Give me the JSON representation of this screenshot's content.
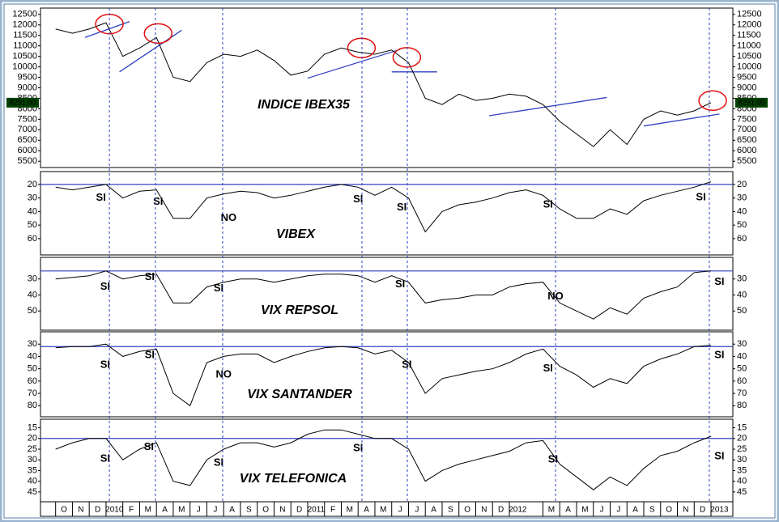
{
  "chart_data": [
    {
      "type": "line",
      "title": "INDICE IBEX35",
      "color": "#000000",
      "last_label": "8291.00",
      "x": [
        0,
        1,
        2,
        3,
        4,
        5,
        6,
        7,
        8,
        9,
        10,
        11,
        12,
        13,
        14,
        15,
        16,
        17,
        18,
        19,
        20,
        21,
        22,
        23,
        24,
        25,
        26,
        27,
        28,
        29,
        30,
        31,
        32,
        33,
        34,
        35,
        36,
        37,
        38,
        39
      ],
      "values": [
        11800,
        11600,
        11800,
        12100,
        10500,
        10900,
        11400,
        9500,
        9300,
        10200,
        10600,
        10500,
        10800,
        10300,
        9600,
        9800,
        10600,
        10900,
        10700,
        10600,
        10800,
        10200,
        8500,
        8200,
        8700,
        8400,
        8500,
        8700,
        8600,
        8200,
        7400,
        6800,
        6200,
        7000,
        6300,
        7500,
        7900,
        7700,
        7900,
        8291
      ],
      "ylim": [
        5200,
        12800
      ],
      "yticks": [
        5500,
        6000,
        6500,
        7000,
        7500,
        8000,
        8500,
        9000,
        9500,
        10000,
        10500,
        11000,
        11500,
        12000,
        12500
      ],
      "vlines": [
        3.2,
        5.94,
        9.94,
        18.23,
        20.93,
        29.75,
        38.9
      ],
      "trendlines": [
        {
          "x1": 1.75,
          "y1": 11400,
          "x2": 4.4,
          "y2": 12160
        },
        {
          "x1": 3.8,
          "y1": 9760,
          "x2": 7.5,
          "y2": 11740
        },
        {
          "x1": 15,
          "y1": 9460,
          "x2": 20.5,
          "y2": 10830
        },
        {
          "x1": 20,
          "y1": 9760,
          "x2": 22.7,
          "y2": 9760
        },
        {
          "x1": 25.8,
          "y1": 7670,
          "x2": 32.8,
          "y2": 8540
        },
        {
          "x1": 35,
          "y1": 7180,
          "x2": 39.5,
          "y2": 7750
        }
      ],
      "circles": [
        {
          "x": 3.2,
          "y": 12040
        },
        {
          "x": 6.1,
          "y": 11590
        },
        {
          "x": 18.2,
          "y": 10900
        },
        {
          "x": 20.9,
          "y": 10450
        },
        {
          "x": 39.1,
          "y": 8390
        }
      ]
    },
    {
      "type": "line",
      "title": "VIBEX",
      "color": "#000000",
      "x": [
        0,
        1,
        2,
        3,
        4,
        5,
        6,
        7,
        8,
        9,
        10,
        11,
        12,
        13,
        14,
        15,
        16,
        17,
        18,
        19,
        20,
        21,
        22,
        23,
        24,
        25,
        26,
        27,
        28,
        29,
        30,
        31,
        32,
        33,
        34,
        35,
        36,
        37,
        38,
        39
      ],
      "values": [
        22,
        24,
        22,
        20,
        30,
        25,
        24,
        45,
        45,
        30,
        27,
        25,
        26,
        30,
        28,
        25,
        22,
        20,
        22,
        28,
        22,
        30,
        55,
        40,
        35,
        33,
        30,
        26,
        24,
        28,
        38,
        45,
        45,
        38,
        42,
        32,
        28,
        25,
        22,
        18
      ],
      "ylim": [
        72,
        10.5
      ],
      "yticks": [
        20,
        30,
        40,
        50,
        60
      ],
      "hline": 20,
      "annotations": [
        {
          "text": "SI",
          "x": 2.7,
          "y": 30,
          "color": "#1a2aa8"
        },
        {
          "text": "SI",
          "x": 6.1,
          "y": 33,
          "color": "#1a2aa8"
        },
        {
          "text": "NO",
          "x": 10.3,
          "y": 45,
          "color": "#e01010"
        },
        {
          "text": "SI",
          "x": 18,
          "y": 31,
          "color": "#1a2aa8"
        },
        {
          "text": "SI",
          "x": 20.6,
          "y": 37,
          "color": "#1a2aa8"
        },
        {
          "text": "SI",
          "x": 29.3,
          "y": 35,
          "color": "#1a2aa8"
        },
        {
          "text": "SI",
          "x": 38.4,
          "y": 29.5,
          "color": "#1a2aa8"
        }
      ]
    },
    {
      "type": "line",
      "title": "VIX REPSOL",
      "color": "#000000",
      "x": [
        0,
        1,
        2,
        3,
        4,
        5,
        6,
        7,
        8,
        9,
        10,
        11,
        12,
        13,
        14,
        15,
        16,
        17,
        18,
        19,
        20,
        21,
        22,
        23,
        24,
        25,
        26,
        27,
        28,
        29,
        30,
        31,
        32,
        33,
        34,
        35,
        36,
        37,
        38,
        39
      ],
      "values": [
        30,
        29,
        28,
        25,
        30,
        28,
        27,
        45,
        45,
        35,
        32,
        30,
        30,
        32,
        30,
        28,
        27,
        27,
        28,
        32,
        28,
        32,
        45,
        43,
        42,
        40,
        40,
        35,
        33,
        32,
        45,
        50,
        55,
        48,
        52,
        42,
        38,
        35,
        26,
        25
      ],
      "ylim": [
        62,
        16.5
      ],
      "yticks": [
        30,
        40,
        50
      ],
      "hline": 25,
      "annotations": [
        {
          "text": "SI",
          "x": 2.95,
          "y": 35,
          "color": "#1a2aa8"
        },
        {
          "text": "SI",
          "x": 5.6,
          "y": 29,
          "color": "#1a2aa8"
        },
        {
          "text": "SI",
          "x": 9.7,
          "y": 36,
          "color": "#1a2aa8"
        },
        {
          "text": "SI",
          "x": 20.5,
          "y": 33.5,
          "color": "#1a2aa8"
        },
        {
          "text": "NO",
          "x": 29.75,
          "y": 41,
          "color": "#e01010"
        },
        {
          "text": "SI",
          "x": 39.5,
          "y": 32,
          "color": "#1a2aa8"
        }
      ]
    },
    {
      "type": "line",
      "title": "VIX SANTANDER",
      "color": "#000000",
      "x": [
        0,
        1,
        2,
        3,
        4,
        5,
        6,
        7,
        8,
        9,
        10,
        11,
        12,
        13,
        14,
        15,
        16,
        17,
        18,
        19,
        20,
        21,
        22,
        23,
        24,
        25,
        26,
        27,
        28,
        29,
        30,
        31,
        32,
        33,
        34,
        35,
        36,
        37,
        38,
        39
      ],
      "values": [
        33,
        32,
        32,
        30,
        40,
        36,
        34,
        70,
        80,
        45,
        40,
        38,
        38,
        45,
        40,
        36,
        33,
        32,
        33,
        38,
        35,
        45,
        70,
        58,
        55,
        52,
        50,
        45,
        38,
        34,
        48,
        55,
        65,
        58,
        62,
        48,
        42,
        38,
        32,
        31
      ],
      "ylim": [
        89,
        20
      ],
      "yticks": [
        30,
        40,
        50,
        60,
        70,
        80
      ],
      "hline": 32,
      "annotations": [
        {
          "text": "SI",
          "x": 2.95,
          "y": 47,
          "color": "#1a2aa8"
        },
        {
          "text": "SI",
          "x": 5.6,
          "y": 39,
          "color": "#1a2aa8"
        },
        {
          "text": "NO",
          "x": 10,
          "y": 55,
          "color": "#e01010"
        },
        {
          "text": "SI",
          "x": 20.9,
          "y": 47,
          "color": "#1a2aa8"
        },
        {
          "text": "SI",
          "x": 29.3,
          "y": 50,
          "color": "#1a2aa8"
        },
        {
          "text": "SI",
          "x": 39.5,
          "y": 39,
          "color": "#1a2aa8"
        }
      ]
    },
    {
      "type": "line",
      "title": "VIX TELEFONICA",
      "color": "#000000",
      "x": [
        0,
        1,
        2,
        3,
        4,
        5,
        6,
        7,
        8,
        9,
        10,
        11,
        12,
        13,
        14,
        15,
        16,
        17,
        18,
        19,
        20,
        21,
        22,
        23,
        24,
        25,
        26,
        27,
        28,
        29,
        30,
        31,
        32,
        33,
        34,
        35,
        36,
        37,
        38,
        39
      ],
      "values": [
        25,
        22,
        20,
        20,
        30,
        25,
        22,
        40,
        42,
        30,
        25,
        22,
        22,
        24,
        22,
        18,
        16,
        16,
        18,
        20,
        20,
        25,
        40,
        35,
        32,
        30,
        28,
        26,
        22,
        21,
        32,
        38,
        44,
        38,
        42,
        34,
        28,
        26,
        22,
        19
      ],
      "ylim": [
        49.6,
        11
      ],
      "yticks": [
        15,
        20,
        25,
        30,
        35,
        40,
        45
      ],
      "hline": 20,
      "annotations": [
        {
          "text": "SI",
          "x": 2.95,
          "y": 29.6,
          "color": "#1a2aa8"
        },
        {
          "text": "SI",
          "x": 5.55,
          "y": 24,
          "color": "#1a2aa8"
        },
        {
          "text": "SI",
          "x": 9.7,
          "y": 31.5,
          "color": "#1a2aa8"
        },
        {
          "text": "SI",
          "x": 18,
          "y": 24.6,
          "color": "#1a2aa8"
        },
        {
          "text": "SI",
          "x": 29.6,
          "y": 30,
          "color": "#1a2aa8"
        },
        {
          "text": "SI",
          "x": 39.5,
          "y": 28.5,
          "color": "#1a2aa8"
        }
      ],
      "xlim": [
        -0.9,
        40.3
      ],
      "xticks": [
        {
          "value": 0,
          "label": "O"
        },
        {
          "value": 1,
          "label": "N"
        },
        {
          "value": 2,
          "label": "D"
        },
        {
          "value": 3,
          "label": "2010"
        },
        {
          "value": 4,
          "label": "F"
        },
        {
          "value": 5,
          "label": "M"
        },
        {
          "value": 6,
          "label": "A"
        },
        {
          "value": 7,
          "label": "M"
        },
        {
          "value": 8,
          "label": "J"
        },
        {
          "value": 9,
          "label": "J"
        },
        {
          "value": 10,
          "label": "A"
        },
        {
          "value": 11,
          "label": "S"
        },
        {
          "value": 12,
          "label": "O"
        },
        {
          "value": 13,
          "label": "N"
        },
        {
          "value": 14,
          "label": "D"
        },
        {
          "value": 15,
          "label": "2011"
        },
        {
          "value": 16,
          "label": "F"
        },
        {
          "value": 17,
          "label": "M"
        },
        {
          "value": 18,
          "label": "A"
        },
        {
          "value": 19,
          "label": "M"
        },
        {
          "value": 20,
          "label": "J"
        },
        {
          "value": 21,
          "label": "J"
        },
        {
          "value": 22,
          "label": "A"
        },
        {
          "value": 23,
          "label": "S"
        },
        {
          "value": 24,
          "label": "O"
        },
        {
          "value": 25,
          "label": "N"
        },
        {
          "value": 26,
          "label": "D"
        },
        {
          "value": 27,
          "label": "2012"
        },
        {
          "value": 29,
          "label": "M"
        },
        {
          "value": 30,
          "label": "A"
        },
        {
          "value": 31,
          "label": "M"
        },
        {
          "value": 32,
          "label": "J"
        },
        {
          "value": 33,
          "label": "J"
        },
        {
          "value": 34,
          "label": "A"
        },
        {
          "value": 35,
          "label": "S"
        },
        {
          "value": 36,
          "label": "O"
        },
        {
          "value": 37,
          "label": "N"
        },
        {
          "value": 38,
          "label": "D"
        },
        {
          "value": 39,
          "label": "2013"
        }
      ]
    }
  ]
}
